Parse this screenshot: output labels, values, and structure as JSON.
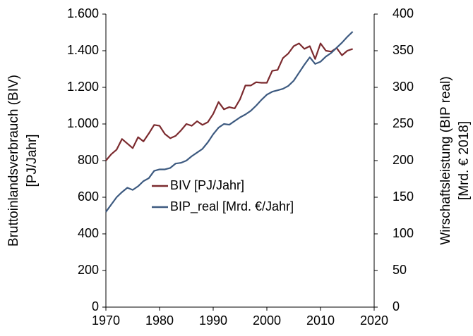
{
  "chart_data": {
    "type": "line",
    "y_label": [
      "Bruttoinlandsverbrauch (BIV)",
      "[PJ/Jahr]"
    ],
    "y2_label": [
      "Wirschaftsleistung (BIP real)",
      "[Mrd. € 2018]"
    ],
    "x": [
      1970,
      1971,
      1972,
      1973,
      1974,
      1975,
      1976,
      1977,
      1978,
      1979,
      1980,
      1981,
      1982,
      1983,
      1984,
      1985,
      1986,
      1987,
      1988,
      1989,
      1990,
      1991,
      1992,
      1993,
      1994,
      1995,
      1996,
      1997,
      1998,
      1999,
      2000,
      2001,
      2002,
      2003,
      2004,
      2005,
      2006,
      2007,
      2008,
      2009,
      2010,
      2011,
      2012,
      2013,
      2014,
      2015,
      2016
    ],
    "series": [
      {
        "name": "BIV [PJ/Jahr]",
        "color": "#7b2a2e",
        "axis": "y",
        "values": [
          800,
          835,
          860,
          918,
          893,
          868,
          928,
          905,
          948,
          995,
          990,
          945,
          922,
          935,
          965,
          1000,
          990,
          1015,
          995,
          1010,
          1055,
          1120,
          1080,
          1092,
          1085,
          1135,
          1210,
          1210,
          1228,
          1225,
          1225,
          1290,
          1295,
          1360,
          1385,
          1425,
          1440,
          1410,
          1425,
          1355,
          1440,
          1400,
          1395,
          1415,
          1375,
          1400,
          1410
        ]
      },
      {
        "name": "BIP_real [Mrd. €/Jahr]",
        "color": "#3d5a80",
        "axis": "y2",
        "values": [
          130,
          140,
          150,
          157,
          163,
          160,
          165,
          172,
          176,
          186,
          188,
          188,
          190,
          196,
          197,
          200,
          206,
          211,
          216,
          225,
          236,
          245,
          250,
          249,
          254,
          259,
          263,
          268,
          275,
          283,
          290,
          294,
          296,
          298,
          302,
          309,
          320,
          331,
          341,
          332,
          335,
          342,
          347,
          354,
          361,
          369,
          376
        ]
      }
    ],
    "xlim": [
      1970,
      2020
    ],
    "xticks": [
      1970,
      1980,
      1990,
      2000,
      2010,
      2020
    ],
    "ylim": [
      0,
      1600
    ],
    "yticks": [
      0,
      200,
      400,
      600,
      800,
      {
        "value": 1000,
        "label": "1.000"
      },
      {
        "value": 1200,
        "label": "1.200"
      },
      {
        "value": 1400,
        "label": "1.400"
      },
      {
        "value": 1600,
        "label": "1.600"
      }
    ],
    "y2lim": [
      0,
      400
    ],
    "y2ticks": [
      0,
      50,
      100,
      150,
      200,
      250,
      300,
      350,
      400
    ],
    "grid": false
  }
}
